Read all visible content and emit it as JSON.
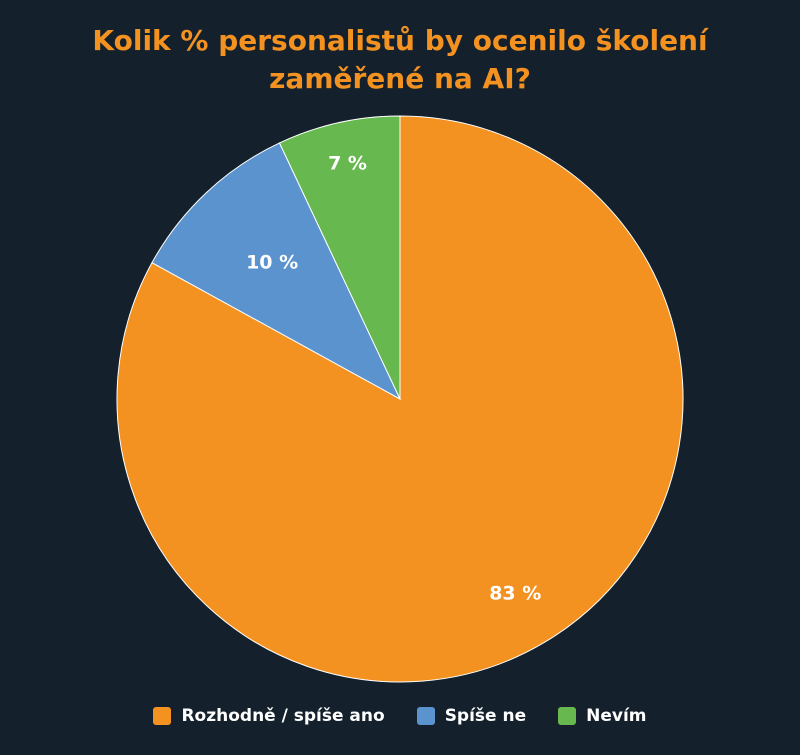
{
  "chart_data": {
    "type": "pie",
    "title_lines": [
      "Kolik % personalistů by ocenilo školení",
      "zaměřené na AI?"
    ],
    "slices": [
      {
        "label": "Rozhodně / spíše ano",
        "value": 83,
        "value_label": "83 %",
        "color": "#f39221"
      },
      {
        "label": "Spíše ne",
        "value": 10,
        "value_label": "10 %",
        "color": "#5b93cf"
      },
      {
        "label": "Nevím",
        "value": 7,
        "value_label": "7 %",
        "color": "#66b84f"
      }
    ],
    "legend_position": "bottom",
    "label_color": "#ffffff",
    "title_color": "#f39221",
    "background": "#14202b"
  }
}
